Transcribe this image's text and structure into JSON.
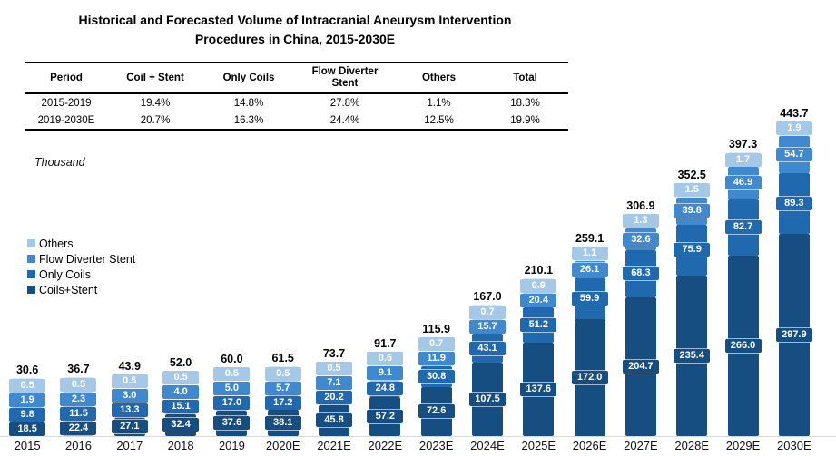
{
  "title": {
    "line1": "Historical and Forecasted Volume of Intracranial Aneurysm Intervention",
    "line2": "Procedures in China, 2015-2030E"
  },
  "cagr_table": {
    "headers": [
      "Period",
      "Coil + Stent",
      "Only Coils",
      "Flow Diverter Stent",
      "Others",
      "Total"
    ],
    "rows": [
      [
        "2015-2019",
        "19.4%",
        "14.8%",
        "27.8%",
        "1.1%",
        "18.3%"
      ],
      [
        "2019-2030E",
        "20.7%",
        "16.3%",
        "24.4%",
        "12.5%",
        "19.9%"
      ]
    ]
  },
  "unit_label": "Thousand",
  "legend": [
    {
      "label": "Others",
      "color": "#A6C8E7"
    },
    {
      "label": "Flow Diverter Stent",
      "color": "#4189CE"
    },
    {
      "label": "Only Coils",
      "color": "#2169AE"
    },
    {
      "label": "Coils+Stent",
      "color": "#174E82"
    }
  ],
  "chart_data": {
    "type": "bar",
    "stacked": true,
    "unit": "Thousand",
    "title": "Historical and Forecasted Volume of Intracranial Aneurysm Intervention Procedures in China, 2015-2030E",
    "legend_position": "left",
    "grid": false,
    "categories": [
      "2015",
      "2016",
      "2017",
      "2018",
      "2019",
      "2020E",
      "2021E",
      "2022E",
      "2023E",
      "2024E",
      "2025E",
      "2026E",
      "2027E",
      "2028E",
      "2029E",
      "2030E"
    ],
    "series": [
      {
        "name": "Coils+Stent",
        "color": "#174E82",
        "values": [
          18.5,
          22.4,
          27.1,
          32.4,
          37.6,
          38.1,
          45.8,
          57.2,
          72.6,
          107.5,
          137.6,
          172.0,
          204.7,
          235.4,
          266.0,
          297.9
        ]
      },
      {
        "name": "Only Coils",
        "color": "#2169AE",
        "values": [
          9.8,
          11.5,
          13.3,
          15.1,
          17.0,
          17.2,
          20.2,
          24.8,
          30.8,
          43.1,
          51.2,
          59.9,
          68.3,
          75.9,
          82.7,
          89.3
        ]
      },
      {
        "name": "Flow Diverter Stent",
        "color": "#4189CE",
        "values": [
          1.9,
          2.3,
          3.0,
          4.0,
          5.0,
          5.7,
          7.1,
          9.1,
          11.9,
          15.7,
          20.4,
          26.1,
          32.6,
          39.8,
          46.9,
          54.7
        ]
      },
      {
        "name": "Others",
        "color": "#A6C8E7",
        "values": [
          0.5,
          0.5,
          0.5,
          0.5,
          0.5,
          0.5,
          0.5,
          0.6,
          0.7,
          0.7,
          0.9,
          1.1,
          1.3,
          1.5,
          1.7,
          1.9
        ]
      }
    ],
    "totals": [
      30.6,
      36.7,
      43.9,
      52.0,
      60.0,
      61.5,
      73.7,
      91.7,
      115.9,
      167.0,
      210.1,
      259.1,
      306.9,
      352.5,
      397.3,
      443.7
    ]
  }
}
